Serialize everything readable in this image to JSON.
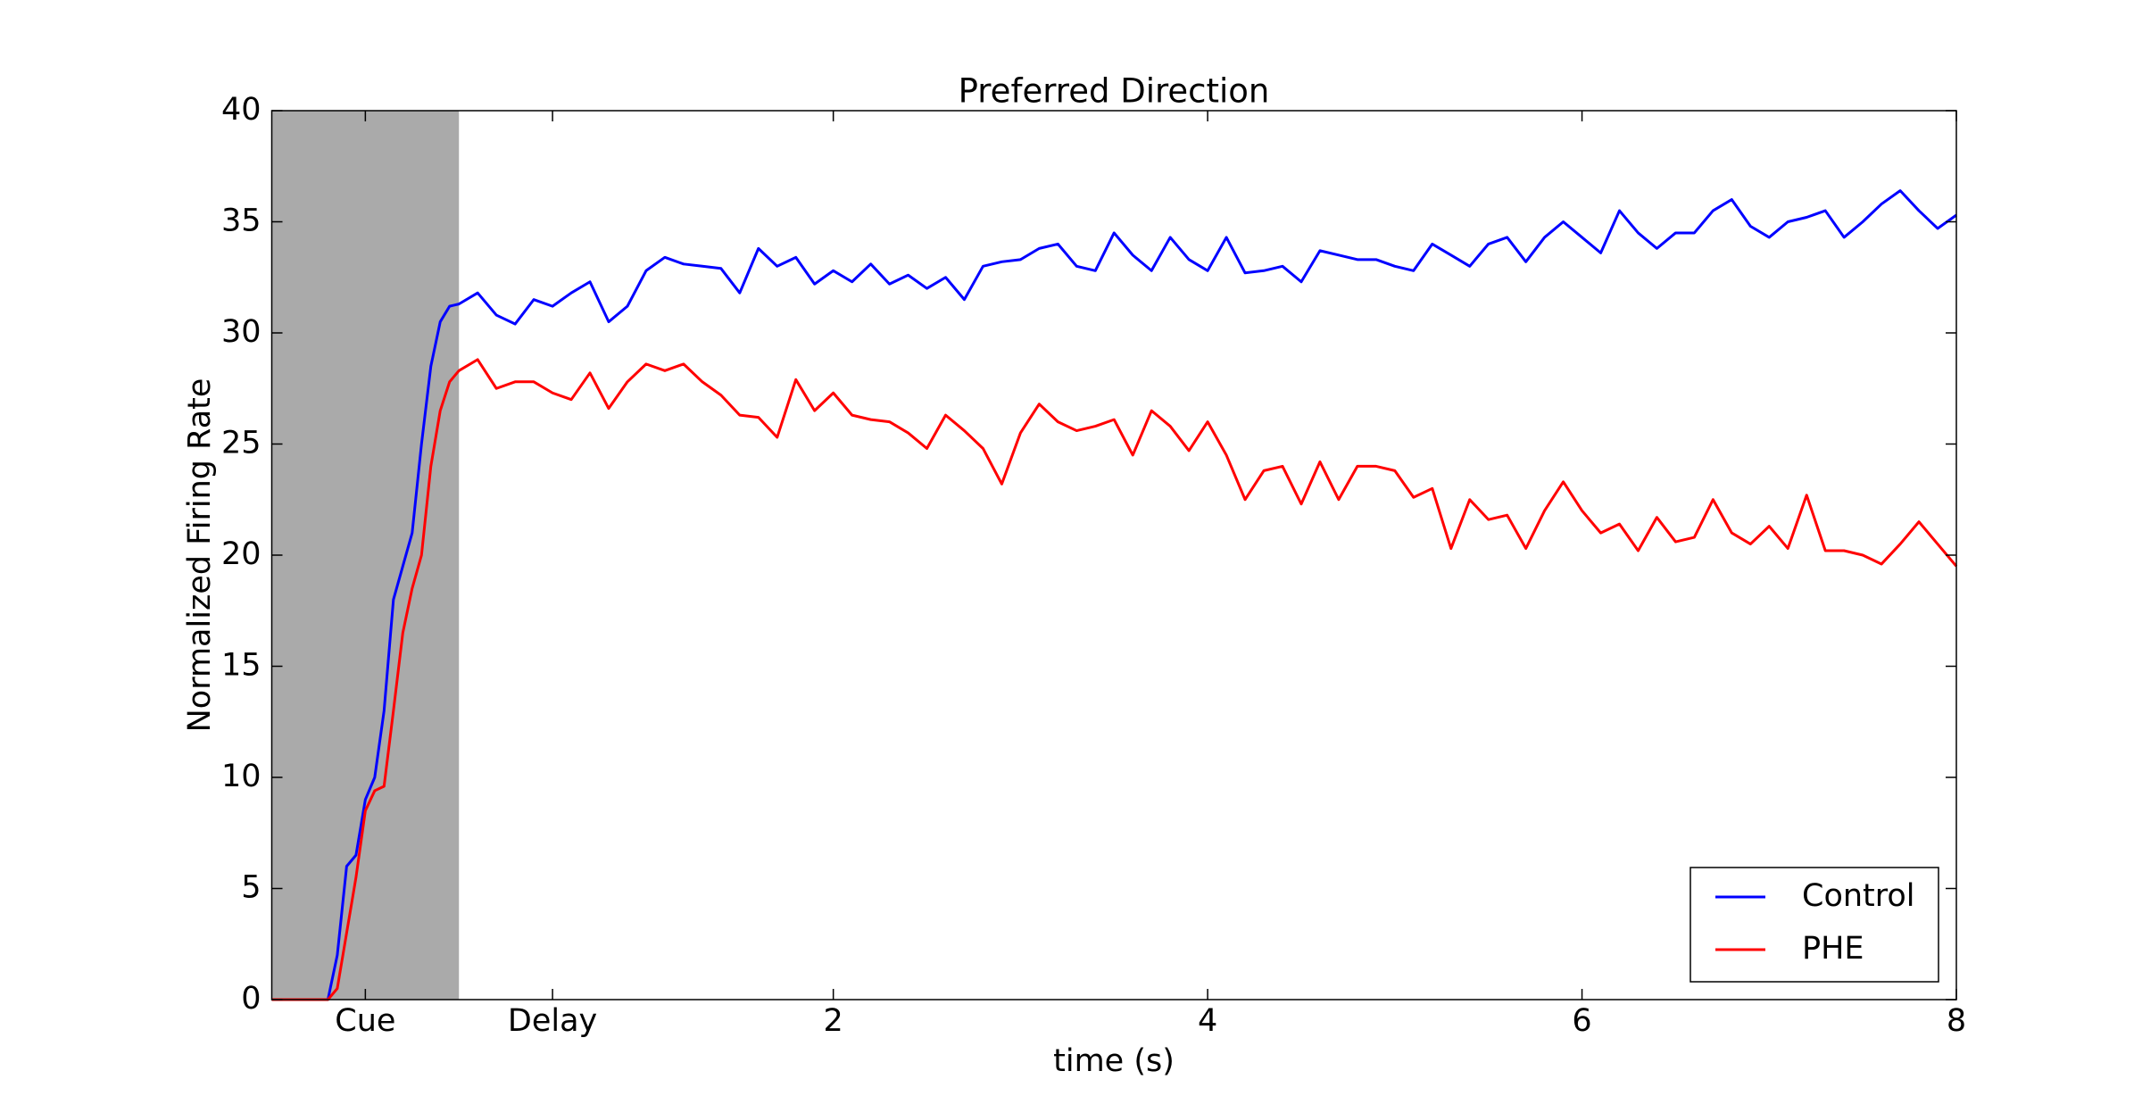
{
  "chart_data": {
    "type": "line",
    "title": "Preferred Direction",
    "x_label": "time (s)",
    "y_label": "Normalized Firing Rate",
    "xlim": [
      -1,
      8
    ],
    "ylim": [
      0,
      40
    ],
    "xticks": [
      {
        "value": -0.5,
        "label": "Cue"
      },
      {
        "value": 0.5,
        "label": "Delay"
      },
      2,
      4,
      6,
      8
    ],
    "yticks": [
      0,
      5,
      10,
      15,
      20,
      25,
      30,
      35,
      40
    ],
    "shaded_span": [
      -1,
      0
    ],
    "shaded_color": "#aaaaaa",
    "legend": "lower right",
    "x": [
      -1,
      -0.9,
      -0.8,
      -0.7,
      -0.65,
      -0.6,
      -0.55,
      -0.5,
      -0.45,
      -0.4,
      -0.35,
      -0.3,
      -0.25,
      -0.2,
      -0.15,
      -0.1,
      -0.05,
      0,
      0.1,
      0.2,
      0.3,
      0.4,
      0.5,
      0.6,
      0.7,
      0.8,
      0.9,
      1.0,
      1.1,
      1.2,
      1.3,
      1.4,
      1.5,
      1.6,
      1.7,
      1.8,
      1.9,
      2.0,
      2.1,
      2.2,
      2.3,
      2.4,
      2.5,
      2.6,
      2.7,
      2.8,
      2.9,
      3.0,
      3.1,
      3.2,
      3.3,
      3.4,
      3.5,
      3.6,
      3.7,
      3.8,
      3.9,
      4.0,
      4.1,
      4.2,
      4.3,
      4.4,
      4.5,
      4.6,
      4.7,
      4.8,
      4.9,
      5.0,
      5.1,
      5.2,
      5.3,
      5.4,
      5.5,
      5.6,
      5.7,
      5.8,
      5.9,
      6.0,
      6.1,
      6.2,
      6.3,
      6.4,
      6.5,
      6.6,
      6.7,
      6.8,
      6.9,
      7.0,
      7.1,
      7.2,
      7.3,
      7.4,
      7.5,
      7.6,
      7.7,
      7.8,
      7.9,
      8.0
    ],
    "series": [
      {
        "name": "Control",
        "color": "#0000ff",
        "values": [
          0,
          0,
          0,
          0,
          2,
          6,
          6.5,
          9,
          10,
          13,
          18,
          19.5,
          21,
          25,
          28.5,
          30.5,
          31.2,
          31.3,
          31.8,
          30.8,
          30.4,
          31.5,
          31.2,
          31.8,
          32.3,
          30.5,
          31.2,
          32.8,
          33.4,
          33.1,
          33.0,
          32.9,
          31.8,
          33.8,
          33.0,
          33.4,
          32.2,
          32.8,
          32.3,
          33.1,
          32.2,
          32.6,
          32.0,
          32.5,
          31.5,
          33.0,
          33.2,
          33.3,
          33.8,
          34.0,
          33.0,
          32.8,
          34.5,
          33.5,
          32.8,
          34.3,
          33.3,
          32.8,
          34.3,
          32.7,
          32.8,
          33.0,
          32.3,
          33.7,
          33.5,
          33.3,
          33.3,
          33.0,
          32.8,
          34.0,
          33.5,
          33.0,
          34.0,
          34.3,
          33.2,
          34.3,
          35.0,
          34.3,
          33.6,
          35.5,
          34.5,
          33.8,
          34.5,
          34.5,
          35.5,
          36.0,
          34.8,
          34.3,
          35.0,
          35.2,
          35.5,
          34.3,
          35.0,
          35.8,
          36.4,
          35.5,
          34.7,
          35.3
        ]
      },
      {
        "name": "PHE",
        "color": "#ff0000",
        "values": [
          0,
          0,
          0,
          0,
          0.5,
          3,
          5.5,
          8.5,
          9.4,
          9.6,
          13,
          16.5,
          18.5,
          20,
          24,
          26.5,
          27.8,
          28.3,
          28.8,
          27.5,
          27.8,
          27.8,
          27.3,
          27.0,
          28.2,
          26.6,
          27.8,
          28.6,
          28.3,
          28.6,
          27.8,
          27.2,
          26.3,
          26.2,
          25.3,
          27.9,
          26.5,
          27.3,
          26.3,
          26.1,
          26.0,
          25.5,
          24.8,
          26.3,
          25.6,
          24.8,
          23.2,
          25.5,
          26.8,
          26.0,
          25.6,
          25.8,
          26.1,
          24.5,
          26.5,
          25.8,
          24.7,
          26.0,
          24.5,
          22.5,
          23.8,
          24.0,
          22.3,
          24.2,
          22.5,
          24.0,
          24.0,
          23.8,
          22.6,
          23.0,
          20.3,
          22.5,
          21.6,
          21.8,
          20.3,
          22.0,
          23.3,
          22.0,
          21.0,
          21.4,
          20.2,
          21.7,
          20.6,
          20.8,
          22.5,
          21.0,
          20.5,
          21.3,
          20.3,
          22.7,
          20.2,
          20.2,
          20.0,
          19.6,
          20.5,
          21.5,
          20.5,
          19.5
        ]
      }
    ]
  }
}
